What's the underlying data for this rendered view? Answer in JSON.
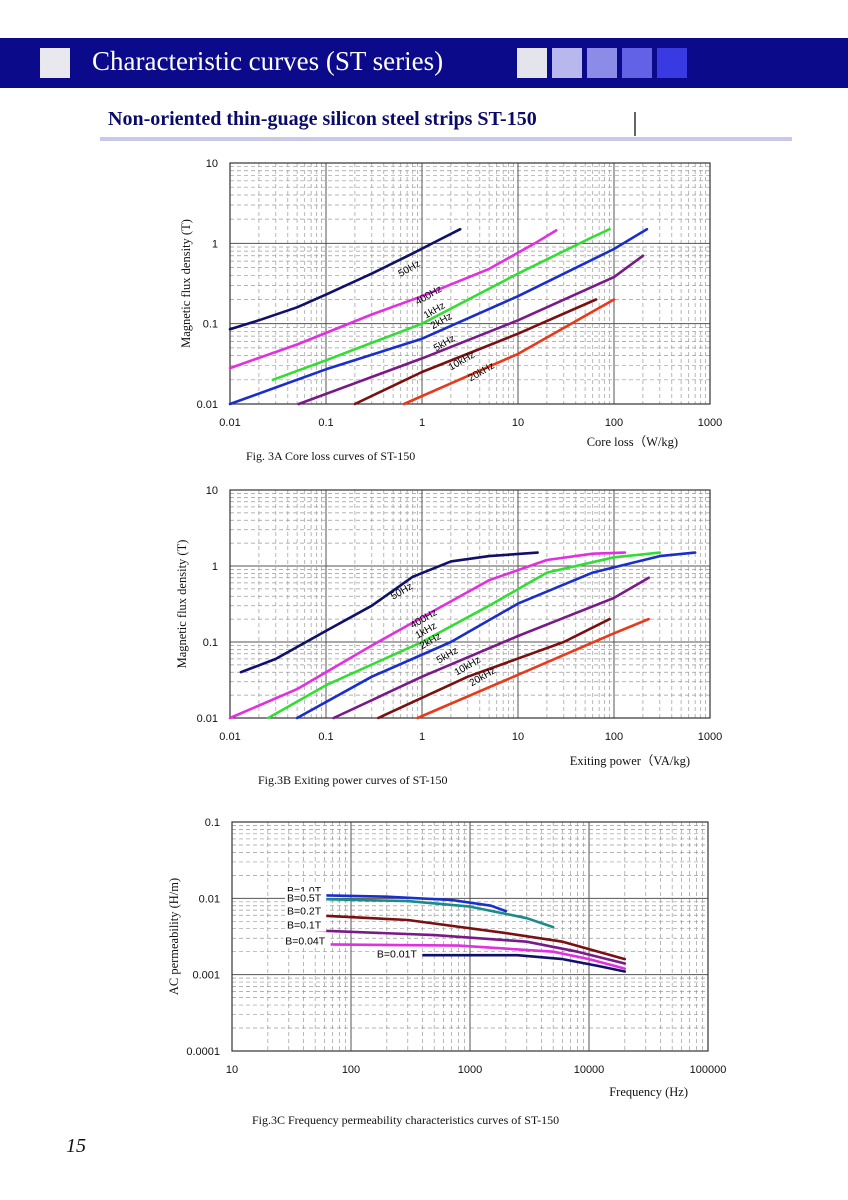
{
  "header": {
    "title": "Characteristic curves (ST series)",
    "accent_colors": [
      "#e4e4ec",
      "#b8b8ee",
      "#8c8ce8",
      "#6262e6",
      "#3a3ae2"
    ]
  },
  "subtitle": "Non-oriented thin-guage silicon steel strips ST-150",
  "page_number": "15",
  "chart_data": [
    {
      "type": "line",
      "scale": "log-log",
      "caption": "Fig. 3A Core loss curves of ST-150",
      "xlabel": "Core loss（W/kg)",
      "ylabel": "Magnetic flux density (T)",
      "xlim": [
        0.01,
        1000
      ],
      "ylim": [
        0.01,
        10
      ],
      "xticks": [
        "0.01",
        "0.1",
        "1",
        "10",
        "100",
        "1000"
      ],
      "yticks": [
        "10",
        "1",
        "0.1",
        "0.01"
      ],
      "series": [
        {
          "name": "50Hz",
          "color": "#10106a",
          "points": [
            [
              0.01,
              0.085
            ],
            [
              0.02,
              0.11
            ],
            [
              0.05,
              0.16
            ],
            [
              0.1,
              0.23
            ],
            [
              0.3,
              0.42
            ],
            [
              0.8,
              0.75
            ],
            [
              1.5,
              1.1
            ],
            [
              2.5,
              1.5
            ]
          ]
        },
        {
          "name": "400Hz",
          "color": "#e030e0",
          "points": [
            [
              0.01,
              0.028
            ],
            [
              0.05,
              0.055
            ],
            [
              0.3,
              0.13
            ],
            [
              1,
              0.22
            ],
            [
              5,
              0.48
            ],
            [
              15,
              1.0
            ],
            [
              25,
              1.45
            ]
          ]
        },
        {
          "name": "1kHz",
          "color": "#33dd33",
          "points": [
            [
              0.028,
              0.02
            ],
            [
              0.1,
              0.035
            ],
            [
              1,
              0.1
            ],
            [
              10,
              0.42
            ],
            [
              60,
              1.2
            ],
            [
              90,
              1.5
            ]
          ]
        },
        {
          "name": "2kHz",
          "color": "#1a2ecc",
          "points": [
            [
              0.01,
              0.01
            ],
            [
              0.1,
              0.027
            ],
            [
              1,
              0.065
            ],
            [
              10,
              0.22
            ],
            [
              100,
              0.85
            ],
            [
              220,
              1.5
            ]
          ]
        },
        {
          "name": "5kHz",
          "color": "#7a1a8a",
          "points": [
            [
              0.052,
              0.01
            ],
            [
              1,
              0.037
            ],
            [
              10,
              0.11
            ],
            [
              100,
              0.38
            ],
            [
              200,
              0.7
            ]
          ]
        },
        {
          "name": "10kHz",
          "color": "#7a1010",
          "points": [
            [
              0.2,
              0.01
            ],
            [
              1,
              0.025
            ],
            [
              10,
              0.075
            ],
            [
              65,
              0.2
            ]
          ]
        },
        {
          "name": "20kHz",
          "color": "#e83a1a",
          "points": [
            [
              0.65,
              0.01
            ],
            [
              10,
              0.042
            ],
            [
              100,
              0.2
            ]
          ]
        }
      ],
      "labels": [
        {
          "text": "50Hz",
          "x": 0.6,
          "y": 0.38
        },
        {
          "text": "400Hz",
          "x": 0.9,
          "y": 0.17
        },
        {
          "text": "1kHz",
          "x": 1.1,
          "y": 0.115
        },
        {
          "text": "2kHz",
          "x": 1.3,
          "y": 0.085
        },
        {
          "text": "5kHz",
          "x": 1.4,
          "y": 0.045
        },
        {
          "text": "10kHz",
          "x": 2.0,
          "y": 0.026
        },
        {
          "text": "20kHz",
          "x": 3.2,
          "y": 0.019
        }
      ]
    },
    {
      "type": "line",
      "scale": "log-log",
      "caption": "Fig.3B Exiting power curves of ST-150",
      "xlabel": "Exiting power（VA/kg)",
      "ylabel": "Magnetic flux density (T)",
      "xlim": [
        0.01,
        1000
      ],
      "ylim": [
        0.01,
        10
      ],
      "xticks": [
        "0.01",
        "0.1",
        "1",
        "10",
        "100",
        "1000"
      ],
      "yticks": [
        "10",
        "1",
        "0.1",
        "0.01"
      ],
      "series": [
        {
          "name": "50Hz",
          "color": "#10106a",
          "points": [
            [
              0.013,
              0.04
            ],
            [
              0.03,
              0.06
            ],
            [
              0.1,
              0.14
            ],
            [
              0.3,
              0.3
            ],
            [
              0.8,
              0.72
            ],
            [
              2,
              1.15
            ],
            [
              5,
              1.35
            ],
            [
              16,
              1.5
            ]
          ]
        },
        {
          "name": "400Hz",
          "color": "#e030e0",
          "points": [
            [
              0.01,
              0.01
            ],
            [
              0.05,
              0.024
            ],
            [
              0.3,
              0.09
            ],
            [
              1.5,
              0.28
            ],
            [
              5,
              0.65
            ],
            [
              20,
              1.2
            ],
            [
              60,
              1.45
            ],
            [
              130,
              1.5
            ]
          ]
        },
        {
          "name": "1kHz",
          "color": "#33dd33",
          "points": [
            [
              0.025,
              0.01
            ],
            [
              0.1,
              0.027
            ],
            [
              1,
              0.1
            ],
            [
              5,
              0.3
            ],
            [
              20,
              0.82
            ],
            [
              100,
              1.3
            ],
            [
              300,
              1.5
            ]
          ]
        },
        {
          "name": "2kHz",
          "color": "#1a2ecc",
          "points": [
            [
              0.05,
              0.01
            ],
            [
              0.3,
              0.035
            ],
            [
              2,
              0.1
            ],
            [
              10,
              0.32
            ],
            [
              60,
              0.82
            ],
            [
              300,
              1.35
            ],
            [
              700,
              1.5
            ]
          ]
        },
        {
          "name": "5kHz",
          "color": "#7a1a8a",
          "points": [
            [
              0.12,
              0.01
            ],
            [
              1,
              0.035
            ],
            [
              10,
              0.12
            ],
            [
              100,
              0.38
            ],
            [
              230,
              0.7
            ]
          ]
        },
        {
          "name": "10kHz",
          "color": "#7a1010",
          "points": [
            [
              0.35,
              0.01
            ],
            [
              3,
              0.035
            ],
            [
              30,
              0.1
            ],
            [
              90,
              0.2
            ]
          ]
        },
        {
          "name": "20kHz",
          "color": "#e83a1a",
          "points": [
            [
              0.9,
              0.01
            ],
            [
              10,
              0.037
            ],
            [
              100,
              0.13
            ],
            [
              230,
              0.2
            ]
          ]
        }
      ],
      "labels": [
        {
          "text": "50Hz",
          "x": 0.5,
          "y": 0.36
        },
        {
          "text": "400Hz",
          "x": 0.8,
          "y": 0.15
        },
        {
          "text": "1kHz",
          "x": 0.9,
          "y": 0.11
        },
        {
          "text": "2kHz",
          "x": 1.0,
          "y": 0.08
        },
        {
          "text": "5kHz",
          "x": 1.5,
          "y": 0.052
        },
        {
          "text": "10kHz",
          "x": 2.3,
          "y": 0.036
        },
        {
          "text": "20kHz",
          "x": 3.3,
          "y": 0.026
        }
      ]
    },
    {
      "type": "line",
      "scale": "log-log",
      "caption": "Fig.3C Frequency permeability characteristics curves of ST-150",
      "xlabel": "Frequency (Hz)",
      "ylabel": "AC permeability (H/m)",
      "xlim": [
        10,
        100000
      ],
      "ylim": [
        0.0001,
        0.1
      ],
      "xticks": [
        "10",
        "100",
        "1000",
        "10000",
        "100000"
      ],
      "yticks": [
        "0.1",
        "0.01",
        "0.001",
        "0.0001"
      ],
      "series": [
        {
          "name": "B=1.0T",
          "color": "#1a2ecc",
          "points": [
            [
              50,
              0.011
            ],
            [
              200,
              0.0105
            ],
            [
              700,
              0.0095
            ],
            [
              1500,
              0.008
            ],
            [
              2000,
              0.0068
            ]
          ]
        },
        {
          "name": "B=0.5T",
          "color": "#1a8a8a",
          "points": [
            [
              50,
              0.0098
            ],
            [
              300,
              0.0092
            ],
            [
              1000,
              0.0078
            ],
            [
              3000,
              0.0055
            ],
            [
              5000,
              0.0042
            ]
          ]
        },
        {
          "name": "B=0.2T",
          "color": "#7a1010",
          "points": [
            [
              50,
              0.006
            ],
            [
              300,
              0.0052
            ],
            [
              2000,
              0.0035
            ],
            [
              6000,
              0.0027
            ],
            [
              12000,
              0.002
            ],
            [
              20000,
              0.0016
            ]
          ]
        },
        {
          "name": "B=0.1T",
          "color": "#7a1a8a",
          "points": [
            [
              50,
              0.0038
            ],
            [
              500,
              0.0033
            ],
            [
              3000,
              0.0027
            ],
            [
              8000,
              0.002
            ],
            [
              20000,
              0.0014
            ]
          ]
        },
        {
          "name": "B=0.04T",
          "color": "#e030e0",
          "points": [
            [
              50,
              0.0025
            ],
            [
              800,
              0.0024
            ],
            [
              5000,
              0.002
            ],
            [
              10000,
              0.0016
            ],
            [
              20000,
              0.0012
            ]
          ]
        },
        {
          "name": "B=0.01T",
          "color": "#10106a",
          "points": [
            [
              320,
              0.0018
            ],
            [
              2500,
              0.0018
            ],
            [
              6000,
              0.0016
            ],
            [
              12000,
              0.0013
            ],
            [
              20000,
              0.0011
            ]
          ]
        }
      ],
      "labels": [
        {
          "text": "B=1.0T",
          "x": 29,
          "y": 0.0114
        },
        {
          "text": "B=0.5T",
          "x": 29,
          "y": 0.0091
        },
        {
          "text": "B=0.2T",
          "x": 29,
          "y": 0.0061
        },
        {
          "text": "B=0.1T",
          "x": 29,
          "y": 0.004
        },
        {
          "text": "B=0.04T",
          "x": 28,
          "y": 0.0025
        },
        {
          "text": "B=0.01T",
          "x": 165,
          "y": 0.00168
        }
      ]
    }
  ]
}
